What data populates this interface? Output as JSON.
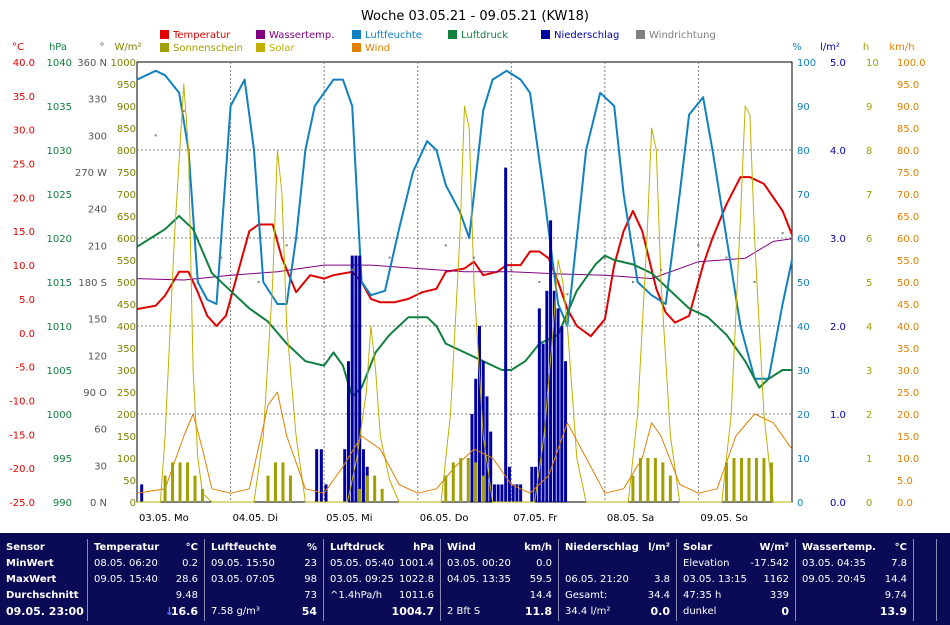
{
  "chart_data": {
    "type": "line",
    "title": "Woche 03.05.21 - 09.05.21 (KW18)",
    "x_range": [
      "03.05. 00:00",
      "10.05. 00:00"
    ],
    "day_labels": [
      "03.05.  Mo",
      "04.05.  Di",
      "05.05.  Mi",
      "06.05.  Do",
      "07.05.  Fr",
      "08.05.  Sa",
      "09.05.  So"
    ],
    "legend": [
      {
        "label": "Temperatur",
        "color": "#e00000"
      },
      {
        "label": "Wassertemp.",
        "color": "#800080"
      },
      {
        "label": "Luftfeuchte",
        "color": "#1080c0"
      },
      {
        "label": "Luftdruck",
        "color": "#108040"
      },
      {
        "label": "Niederschlag",
        "color": "#0000a0"
      },
      {
        "label": "Windrichtung",
        "color": "#808080"
      },
      {
        "label": "Sonnenschein",
        "color": "#a0a000"
      },
      {
        "label": "Solar",
        "color": "#c0b000"
      },
      {
        "label": "Wind",
        "color": "#e08000"
      }
    ],
    "axes": {
      "temperature": {
        "unit": "°C",
        "ticks": [
          "40.0",
          "35.0",
          "30.0",
          "25.0",
          "20.0",
          "15.0",
          "10.0",
          "5.0",
          "0.0",
          "-5.0",
          "-10.0",
          "-15.0",
          "-20.0",
          "-25.0"
        ],
        "range": [
          -25,
          40
        ],
        "color": "#e00000"
      },
      "pressure": {
        "unit": "hPa",
        "ticks": [
          "1040",
          "1035",
          "1030",
          "1025",
          "1020",
          "1015",
          "1010",
          "1005",
          "1000",
          "995",
          "990"
        ],
        "range": [
          990,
          1040
        ],
        "color": "#108040"
      },
      "wind_direction": {
        "unit": "°",
        "ticks": [
          "360 N",
          "330",
          "300",
          "270 W",
          "240",
          "210",
          "180 S",
          "150",
          "120",
          "90 O",
          "60",
          "30",
          "0 N"
        ],
        "range": [
          0,
          360
        ],
        "color": "#555555"
      },
      "solar": {
        "unit": "W/m²",
        "ticks": [
          "1000",
          "950",
          "900",
          "850",
          "800",
          "750",
          "700",
          "650",
          "600",
          "550",
          "500",
          "450",
          "400",
          "350",
          "300",
          "250",
          "200",
          "150",
          "100",
          "50",
          "0"
        ],
        "range": [
          0,
          1000
        ],
        "color": "#808000"
      },
      "humidity": {
        "unit": "%",
        "ticks": [
          "100",
          "90",
          "80",
          "70",
          "60",
          "50",
          "40",
          "30",
          "20",
          "10",
          "0"
        ],
        "range": [
          0,
          100
        ],
        "color": "#1080c0"
      },
      "precipitation": {
        "unit": "l/m²",
        "ticks": [
          "5.0",
          "4.0",
          "3.0",
          "2.0",
          "1.0",
          "0.0"
        ],
        "range": [
          0,
          5
        ],
        "color": "#0000a0"
      },
      "sunshine": {
        "unit": "h",
        "ticks": [
          "10",
          "9",
          "8",
          "7",
          "6",
          "5",
          "4",
          "3",
          "2",
          "1",
          "0"
        ],
        "range": [
          0,
          10
        ],
        "color": "#a0a000"
      },
      "wind_speed": {
        "unit": "km/h",
        "ticks": [
          "100.0",
          "95.0",
          "90.0",
          "85.0",
          "80.0",
          "75.0",
          "70.0",
          "65.0",
          "60.0",
          "55.0",
          "50.0",
          "45.0",
          "40.0",
          "35.0",
          "30.0",
          "25.0",
          "20.0",
          "15.0",
          "10.0",
          "5.0",
          "0.0"
        ],
        "range": [
          0,
          100
        ],
        "color": "#e08000"
      }
    },
    "series": [
      {
        "name": "Temperatur",
        "axis": "temperature",
        "color": "#e00000",
        "x": [
          0,
          0.2,
          0.3,
          0.45,
          0.55,
          0.65,
          0.75,
          0.85,
          0.95,
          1.1,
          1.2,
          1.3,
          1.45,
          1.55,
          1.7,
          1.85,
          2.0,
          2.1,
          2.3,
          2.4,
          2.5,
          2.6,
          2.75,
          2.9,
          3.05,
          3.2,
          3.3,
          3.5,
          3.6,
          3.7,
          3.85,
          3.95,
          4.1,
          4.2,
          4.3,
          4.4,
          4.5,
          4.6,
          4.7,
          4.85,
          5.0,
          5.1,
          5.2,
          5.3,
          5.4,
          5.55,
          5.65,
          5.75,
          5.9,
          6.05,
          6.15,
          6.3,
          6.45,
          6.55,
          6.7,
          6.8,
          6.9,
          7.0
        ],
        "y": [
          3.5,
          4.0,
          5.5,
          9.0,
          9.0,
          6.0,
          2.5,
          1.0,
          2.5,
          10.0,
          15.0,
          16.0,
          16.0,
          11.0,
          6.0,
          8.5,
          8.0,
          8.5,
          9.0,
          7.5,
          5.0,
          4.5,
          4.5,
          5.0,
          6.0,
          6.5,
          9.0,
          9.5,
          10.5,
          8.5,
          9.0,
          10.0,
          10.0,
          12.0,
          12.0,
          11.0,
          7.5,
          3.5,
          1.0,
          -0.5,
          2.0,
          10.0,
          15.0,
          18.0,
          15.0,
          6.5,
          3.0,
          1.5,
          2.5,
          10.0,
          14.0,
          19.0,
          23.0,
          23.0,
          22.0,
          20.0,
          18.0,
          14.5
        ]
      },
      {
        "name": "Wassertemp.",
        "axis": "temperature",
        "color": "#800080",
        "x": [
          0,
          0.5,
          1.0,
          1.5,
          2.0,
          2.5,
          3.0,
          3.5,
          4.0,
          4.5,
          5.0,
          5.5,
          6.0,
          6.5,
          6.8,
          7.0
        ],
        "y": [
          8.0,
          7.8,
          8.5,
          9.0,
          10.0,
          10.0,
          9.5,
          9.0,
          9.0,
          8.7,
          8.5,
          8.0,
          10.5,
          11.0,
          13.5,
          13.9
        ]
      },
      {
        "name": "Luftfeuchte",
        "axis": "humidity",
        "color": "#1080c0",
        "x": [
          0,
          0.1,
          0.2,
          0.3,
          0.45,
          0.55,
          0.65,
          0.75,
          0.85,
          1.0,
          1.15,
          1.25,
          1.35,
          1.5,
          1.6,
          1.7,
          1.8,
          1.9,
          2.0,
          2.1,
          2.2,
          2.3,
          2.4,
          2.5,
          2.65,
          2.8,
          2.95,
          3.1,
          3.2,
          3.3,
          3.45,
          3.55,
          3.7,
          3.8,
          3.95,
          4.1,
          4.2,
          4.35,
          4.5,
          4.6,
          4.7,
          4.8,
          4.95,
          5.1,
          5.2,
          5.35,
          5.5,
          5.65,
          5.8,
          5.9,
          6.05,
          6.15,
          6.3,
          6.45,
          6.6,
          6.75,
          6.9,
          7.0
        ],
        "y": [
          96,
          97,
          98,
          97,
          93,
          80,
          50,
          46,
          45,
          90,
          96,
          80,
          50,
          45,
          45,
          60,
          80,
          90,
          93,
          96,
          96,
          90,
          50,
          47,
          48,
          62,
          75,
          82,
          80,
          72,
          66,
          60,
          89,
          96,
          98,
          96,
          93,
          70,
          45,
          40,
          60,
          80,
          93,
          90,
          70,
          50,
          47,
          45,
          70,
          88,
          92,
          80,
          60,
          40,
          28,
          28,
          45,
          55
        ]
      },
      {
        "name": "Luftdruck",
        "axis": "pressure",
        "color": "#108040",
        "x": [
          0,
          0.15,
          0.3,
          0.45,
          0.6,
          0.8,
          1.0,
          1.2,
          1.4,
          1.6,
          1.8,
          2.0,
          2.1,
          2.2,
          2.3,
          2.4,
          2.55,
          2.7,
          2.9,
          3.1,
          3.2,
          3.3,
          3.5,
          3.7,
          3.9,
          4.0,
          4.15,
          4.3,
          4.5,
          4.7,
          4.9,
          5.0,
          5.1,
          5.3,
          5.5,
          5.7,
          5.9,
          6.1,
          6.3,
          6.5,
          6.65,
          6.75,
          6.9,
          7.0
        ],
        "y": [
          1019,
          1020,
          1021,
          1022.5,
          1021,
          1016,
          1014,
          1012,
          1010.5,
          1008,
          1006,
          1005.5,
          1007,
          1005.5,
          1002,
          1003,
          1007,
          1009,
          1011,
          1011,
          1010,
          1008,
          1007,
          1006,
          1005,
          1005,
          1006,
          1008,
          1009,
          1014,
          1017,
          1018,
          1017.5,
          1017,
          1016,
          1014,
          1012,
          1011,
          1009,
          1006,
          1003,
          1004,
          1005,
          1005
        ]
      },
      {
        "name": "Niederschlag",
        "axis": "precipitation",
        "type": "bar",
        "color": "#0000a0",
        "x": [
          0.05,
          1.92,
          1.97,
          2.02,
          2.22,
          2.26,
          2.3,
          2.34,
          2.38,
          2.42,
          2.46,
          3.58,
          3.62,
          3.66,
          3.7,
          3.74,
          3.78,
          3.82,
          3.86,
          3.9,
          3.94,
          3.98,
          4.02,
          4.06,
          4.1,
          4.22,
          4.26,
          4.3,
          4.34,
          4.38,
          4.42,
          4.46,
          4.5,
          4.54,
          4.58
        ],
        "y": [
          0.2,
          0.6,
          0.6,
          0.2,
          0.6,
          1.6,
          2.8,
          2.8,
          2.8,
          0.6,
          0.4,
          1.0,
          1.4,
          2.0,
          1.6,
          1.2,
          0.8,
          0.2,
          0.2,
          0.2,
          3.8,
          0.4,
          0.2,
          0.2,
          0.2,
          0.4,
          0.4,
          2.2,
          1.8,
          2.4,
          3.2,
          2.4,
          2.2,
          2.0,
          1.6
        ]
      },
      {
        "name": "Solar",
        "axis": "solar",
        "color": "#c0b000",
        "x": [
          0,
          0.25,
          0.3,
          0.4,
          0.5,
          0.55,
          0.6,
          0.65,
          0.7,
          0.8,
          1.25,
          1.35,
          1.45,
          1.5,
          1.55,
          1.6,
          1.7,
          1.8,
          2.25,
          2.35,
          2.45,
          2.5,
          2.55,
          2.6,
          2.7,
          2.8,
          3.25,
          3.35,
          3.45,
          3.5,
          3.55,
          3.6,
          3.7,
          3.8,
          4.25,
          4.35,
          4.45,
          4.5,
          4.55,
          4.6,
          4.7,
          4.8,
          5.25,
          5.35,
          5.45,
          5.5,
          5.55,
          5.6,
          5.7,
          5.8,
          6.25,
          6.35,
          6.45,
          6.5,
          6.55,
          6.6,
          6.7,
          6.8,
          7.0
        ],
        "y": [
          0,
          0,
          150,
          600,
          950,
          800,
          300,
          100,
          20,
          0,
          0,
          150,
          500,
          800,
          700,
          400,
          150,
          0,
          0,
          100,
          250,
          400,
          300,
          150,
          50,
          0,
          0,
          200,
          600,
          900,
          850,
          500,
          150,
          0,
          0,
          150,
          400,
          550,
          500,
          400,
          100,
          0,
          0,
          200,
          600,
          850,
          800,
          500,
          150,
          0,
          0,
          200,
          650,
          900,
          880,
          600,
          200,
          0,
          0
        ]
      },
      {
        "name": "Wind",
        "axis": "wind_speed",
        "color": "#e08000",
        "x": [
          0,
          0.3,
          0.5,
          0.6,
          0.7,
          0.8,
          1.0,
          1.2,
          1.4,
          1.5,
          1.6,
          1.8,
          2.0,
          2.2,
          2.4,
          2.6,
          2.8,
          3.0,
          3.2,
          3.4,
          3.6,
          3.8,
          4.0,
          4.2,
          4.4,
          4.6,
          4.8,
          5.0,
          5.2,
          5.4,
          5.5,
          5.6,
          5.8,
          6.0,
          6.2,
          6.4,
          6.6,
          6.8,
          7.0
        ],
        "y": [
          2,
          3,
          15,
          20,
          12,
          3,
          2,
          3,
          22,
          25,
          15,
          3,
          2,
          8,
          15,
          12,
          4,
          2,
          3,
          8,
          12,
          10,
          4,
          2,
          6,
          18,
          10,
          2,
          3,
          10,
          18,
          15,
          4,
          2,
          3,
          15,
          20,
          18,
          12
        ]
      },
      {
        "name": "Sonnenschein",
        "axis": "sunshine",
        "type": "bar",
        "color": "#a0a000",
        "x": [
          0.3,
          0.38,
          0.46,
          0.54,
          0.62,
          0.7,
          1.4,
          1.48,
          1.56,
          1.64,
          2.38,
          2.46,
          2.54,
          2.62,
          3.3,
          3.38,
          3.46,
          3.54,
          3.62,
          3.7,
          5.3,
          5.38,
          5.46,
          5.54,
          5.62,
          5.7,
          6.3,
          6.38,
          6.46,
          6.54,
          6.62,
          6.7,
          6.78
        ],
        "y": [
          0.6,
          0.9,
          0.9,
          0.9,
          0.6,
          0.3,
          0.6,
          0.9,
          0.9,
          0.6,
          0.3,
          0.6,
          0.6,
          0.3,
          0.6,
          0.9,
          1.0,
          1.0,
          0.9,
          0.6,
          0.6,
          1.0,
          1.0,
          1.0,
          0.9,
          0.6,
          0.9,
          1.0,
          1.0,
          1.0,
          1.0,
          1.0,
          0.9
        ]
      },
      {
        "name": "Windrichtung",
        "axis": "wind_direction",
        "type": "scatter",
        "color": "#808080",
        "x": [
          0.2,
          0.5,
          0.9,
          1.3,
          1.6,
          2.0,
          2.3,
          2.7,
          3.0,
          3.3,
          3.6,
          4.0,
          4.3,
          4.6,
          5.0,
          5.3,
          5.6,
          6.0,
          6.3,
          6.6,
          6.9
        ],
        "y": [
          300,
          320,
          200,
          180,
          210,
          180,
          190,
          200,
          170,
          210,
          200,
          190,
          180,
          170,
          200,
          180,
          190,
          210,
          200,
          180,
          220
        ]
      }
    ]
  },
  "stats": {
    "sensor": {
      "header": "Sensor",
      "min": "MinWert",
      "max": "MaxWert",
      "avg": "Durchschnitt",
      "now": "09.05. 23:00"
    },
    "temperature": {
      "header": "Temperatur",
      "unit": "°C",
      "min_time": "08.05.  06:20",
      "min_val": "0.2",
      "max_time": "09.05.  15:40",
      "max_val": "28.6",
      "avg": "9.48",
      "now_val": "16.6",
      "now_arrow": "↓"
    },
    "humidity": {
      "header": "Luftfeuchte",
      "unit": "%",
      "min_time": "09.05.  15:50",
      "min_val": "23",
      "max_time": "03.05.  07:05",
      "max_val": "98",
      "avg": "73",
      "abs_humidity": "7.58 g/m³",
      "now_val": "54"
    },
    "pressure": {
      "header": "Luftdruck",
      "unit": "hPa",
      "min_time": "05.05.  05:40",
      "min_val": "1001.4",
      "max_time": "03.05.  09:25",
      "max_val": "1022.8",
      "trend": "^1.4hPa/h",
      "avg": "1011.6",
      "now_val": "1004.7"
    },
    "wind": {
      "header": "Wind",
      "unit": "km/h",
      "min_time": "03.05.  00:20",
      "min_val": "0.0",
      "max_time": "04.05.  13:35",
      "max_val": "59.5",
      "avg": "14.4",
      "dir": "2 Bft S",
      "now_val": "11.8"
    },
    "precipitation": {
      "header": "Niederschlag",
      "unit": "l/m²",
      "max_time": "06.05.  21:20",
      "max_val": "3.8",
      "total_label": "Gesamt:",
      "total_val": "34.4",
      "sum": "34.4 l/m²",
      "now_val": "0.0"
    },
    "solar": {
      "header": "Solar",
      "unit": "W/m²",
      "elev_label": "Elevation",
      "elev_val": "-17.542",
      "max_time": "03.05.  13:15",
      "max_val": "1162",
      "sun_hours": "47:35 h",
      "avg": "339",
      "state": "dunkel",
      "now_val": "0"
    },
    "water": {
      "header": "Wassertemp.",
      "unit": "°C",
      "min_time": "03.05.  04:35",
      "min_val": "7.8",
      "max_time": "09.05.  20:45",
      "max_val": "14.4",
      "avg": "9.74",
      "now_val": "13.9"
    }
  }
}
